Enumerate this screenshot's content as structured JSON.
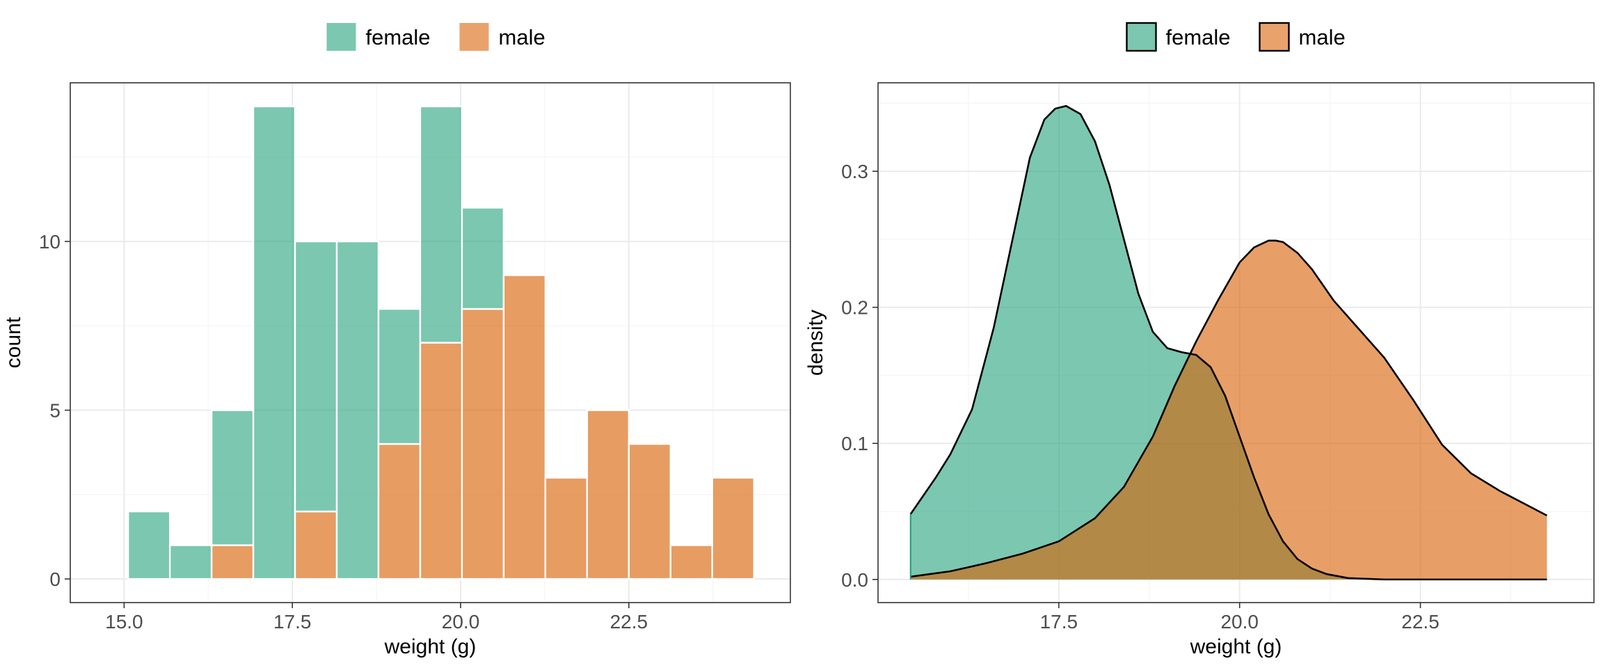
{
  "colors": {
    "female": "#1b9e77",
    "male": "#d95f02",
    "overlap": "#a87440",
    "grid_major": "#ebebeb",
    "grid_minor": "#f5f5f5",
    "panel_border": "#333333",
    "bar_border": "#ffffff"
  },
  "chart_data": [
    {
      "type": "bar",
      "subtype": "stacked-histogram",
      "xlabel": "weight (g)",
      "ylabel": "count",
      "xlim": [
        14.2,
        24.9
      ],
      "ylim": [
        -0.7,
        14.7
      ],
      "x_ticks": [
        15.0,
        17.5,
        20.0,
        22.5
      ],
      "x_tick_labels": [
        "15.0",
        "17.5",
        "20.0",
        "22.5"
      ],
      "y_ticks": [
        0,
        5,
        10
      ],
      "y_tick_labels": [
        "0",
        "5",
        "10"
      ],
      "grid": true,
      "legend": {
        "position": "top",
        "entries": [
          "female",
          "male"
        ]
      },
      "bin_width": 0.62,
      "bin_centers": [
        15.37,
        15.99,
        16.61,
        17.23,
        17.85,
        18.47,
        19.09,
        19.71,
        20.33,
        20.95,
        21.57,
        22.19,
        22.81,
        23.43,
        24.05
      ],
      "series": [
        {
          "name": "male",
          "values": [
            0,
            0,
            1,
            0,
            2,
            0,
            4,
            7,
            8,
            9,
            3,
            5,
            4,
            1,
            3
          ]
        },
        {
          "name": "female",
          "values": [
            2,
            1,
            4,
            14,
            8,
            10,
            4,
            7,
            3,
            0,
            0,
            0,
            0,
            0,
            0
          ]
        }
      ]
    },
    {
      "type": "area",
      "subtype": "density",
      "xlabel": "weight (g)",
      "ylabel": "density",
      "xlim": [
        15.0,
        24.9
      ],
      "ylim": [
        -0.017,
        0.365
      ],
      "x_ticks": [
        17.5,
        20.0,
        22.5
      ],
      "x_tick_labels": [
        "17.5",
        "20.0",
        "22.5"
      ],
      "y_ticks": [
        0.0,
        0.1,
        0.2,
        0.3
      ],
      "y_tick_labels": [
        "0.0",
        "0.1",
        "0.2",
        "0.3"
      ],
      "grid": true,
      "legend": {
        "position": "top",
        "entries": [
          "female",
          "male"
        ]
      },
      "series": [
        {
          "name": "female",
          "x": [
            15.45,
            15.8,
            16.0,
            16.3,
            16.6,
            16.9,
            17.1,
            17.3,
            17.45,
            17.6,
            17.8,
            18.0,
            18.2,
            18.4,
            18.6,
            18.8,
            19.0,
            19.2,
            19.4,
            19.6,
            19.8,
            20.0,
            20.2,
            20.4,
            20.6,
            20.8,
            21.0,
            21.2,
            21.5,
            22.0,
            22.5,
            23.0,
            24.25
          ],
          "y": [
            0.048,
            0.075,
            0.092,
            0.125,
            0.185,
            0.26,
            0.31,
            0.338,
            0.346,
            0.348,
            0.342,
            0.322,
            0.29,
            0.25,
            0.21,
            0.182,
            0.17,
            0.167,
            0.165,
            0.156,
            0.135,
            0.105,
            0.075,
            0.048,
            0.028,
            0.015,
            0.008,
            0.004,
            0.001,
            0.0,
            0.0,
            0.0,
            0.0
          ]
        },
        {
          "name": "male",
          "x": [
            15.45,
            16.0,
            16.5,
            17.0,
            17.5,
            18.0,
            18.4,
            18.8,
            19.1,
            19.4,
            19.7,
            20.0,
            20.2,
            20.4,
            20.5,
            20.6,
            20.8,
            21.0,
            21.3,
            21.6,
            22.0,
            22.4,
            22.8,
            23.2,
            23.6,
            24.25
          ],
          "y": [
            0.002,
            0.006,
            0.012,
            0.019,
            0.028,
            0.045,
            0.068,
            0.105,
            0.142,
            0.175,
            0.205,
            0.233,
            0.244,
            0.249,
            0.249,
            0.248,
            0.24,
            0.228,
            0.205,
            0.187,
            0.163,
            0.132,
            0.099,
            0.078,
            0.065,
            0.047
          ]
        }
      ]
    }
  ]
}
